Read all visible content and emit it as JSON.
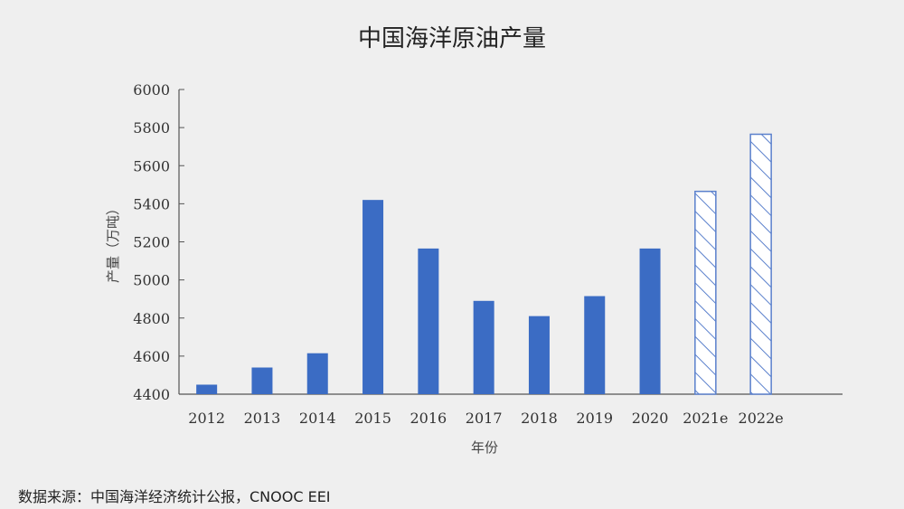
{
  "chart_data": {
    "type": "bar",
    "title": "中国海洋原油产量",
    "xlabel": "年份",
    "ylabel": "产量（万吨）",
    "ylim": [
      4400,
      6000
    ],
    "yticks": [
      4400,
      4600,
      4800,
      5000,
      5200,
      5400,
      5600,
      5800,
      6000
    ],
    "categories": [
      "2012",
      "2013",
      "2014",
      "2015",
      "2016",
      "2017",
      "2018",
      "2019",
      "2020",
      "2021e",
      "2022e"
    ],
    "values": [
      4450,
      4540,
      4615,
      5420,
      5165,
      4890,
      4810,
      4915,
      5165,
      5465,
      5765
    ],
    "estimated": [
      false,
      false,
      false,
      false,
      false,
      false,
      false,
      false,
      false,
      true,
      true
    ],
    "colors": {
      "solid": "#3b6cc4",
      "hatch": "#5a80cc"
    },
    "grid": false,
    "legend": "none"
  },
  "source": "数据来源：中国海洋经济统计公报，CNOOC EEI"
}
